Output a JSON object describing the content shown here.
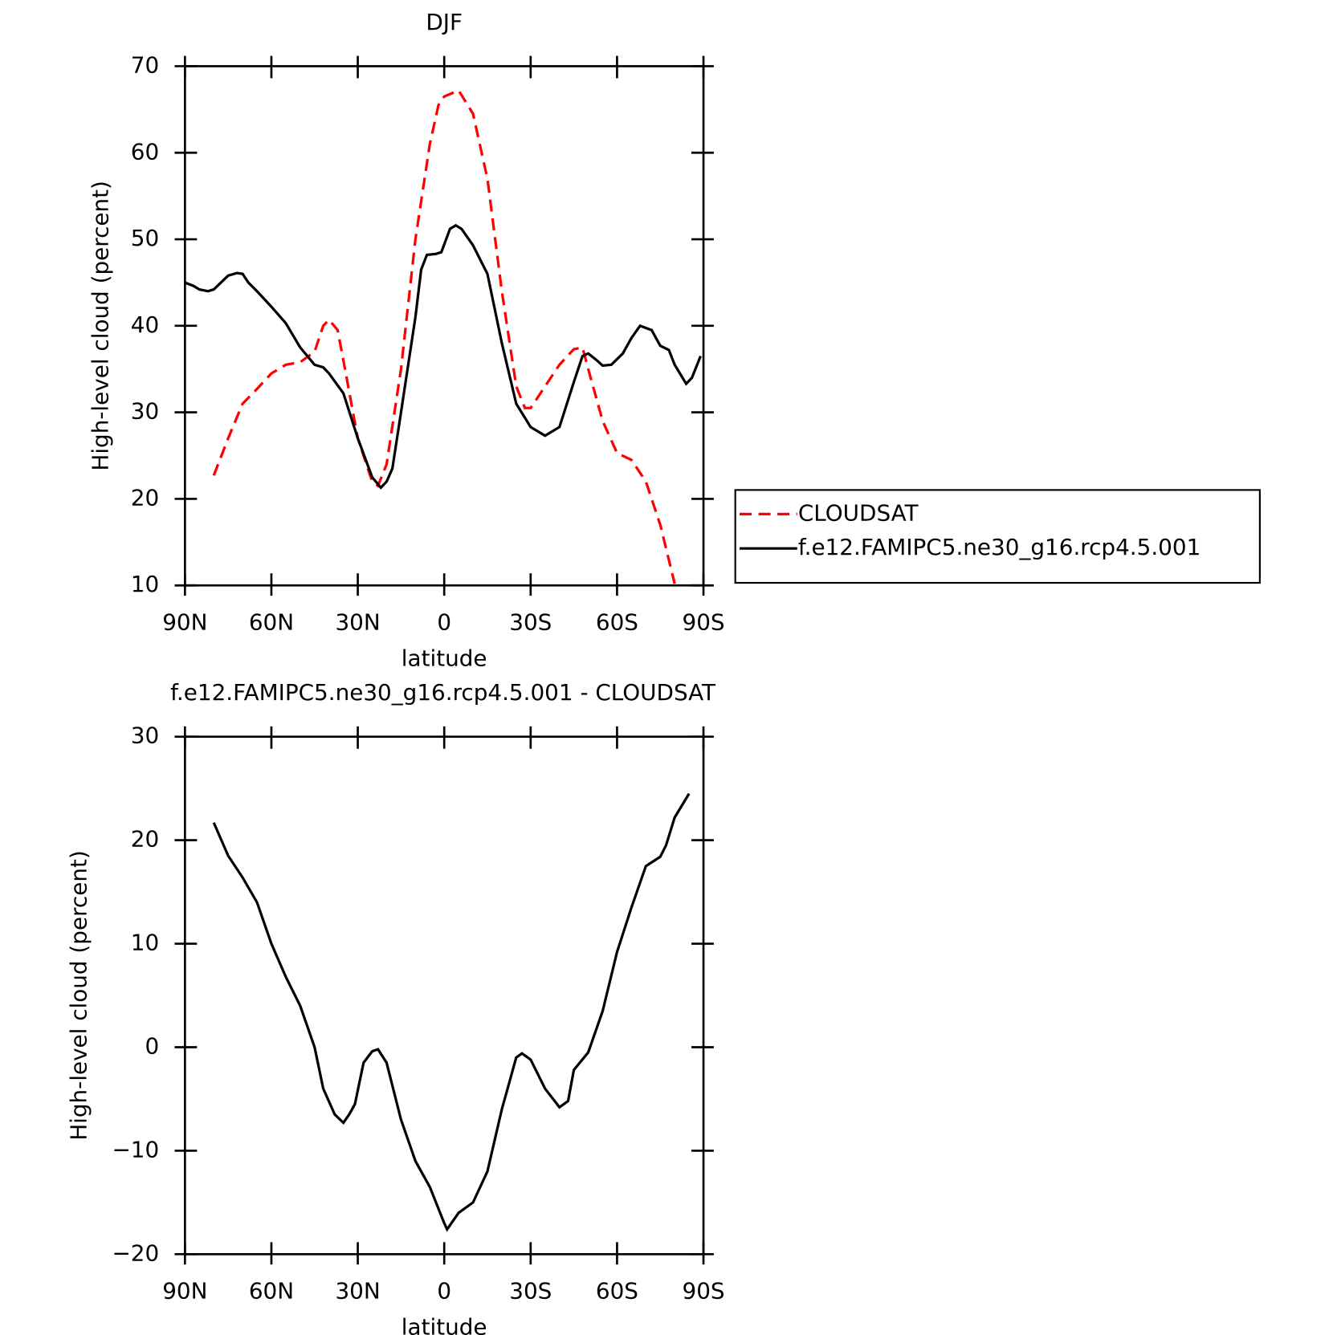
{
  "chart_data": [
    {
      "type": "line",
      "title": "DJF",
      "xlabel": "latitude",
      "ylabel": "High-level cloud (percent)",
      "xlim": [
        90,
        -90
      ],
      "ylim": [
        10,
        70
      ],
      "xticks": [
        {
          "value": 90,
          "label": "90N"
        },
        {
          "value": 60,
          "label": "60N"
        },
        {
          "value": 30,
          "label": "30N"
        },
        0,
        {
          "value": -30,
          "label": "30S"
        },
        {
          "value": -60,
          "label": "60S"
        },
        {
          "value": -90,
          "label": "90S"
        }
      ],
      "yticks": [
        10,
        20,
        30,
        40,
        50,
        60,
        70
      ],
      "legend": "right",
      "series": [
        {
          "name": "CLOUDSAT",
          "color": "#ff0000",
          "dash": "dashed",
          "x": [
            80,
            75,
            70,
            65,
            60,
            55,
            50,
            45,
            42,
            40,
            37,
            35,
            30,
            25,
            23,
            20,
            15,
            10,
            5,
            2,
            0,
            -5,
            -10,
            -15,
            -20,
            -25,
            -28,
            -30,
            -35,
            -40,
            -45,
            -48,
            -50,
            -55,
            -60,
            -65,
            -70,
            -75,
            -80
          ],
          "values": [
            22.7,
            27,
            31,
            32.7,
            34.5,
            35.5,
            35.8,
            37,
            40,
            40.7,
            39.5,
            36,
            27,
            22,
            21.5,
            24,
            35,
            50,
            61,
            65.5,
            66.5,
            67.2,
            64.5,
            57,
            44,
            33,
            30.5,
            30.5,
            33,
            35.5,
            37.3,
            37.5,
            35,
            29,
            25.3,
            24.5,
            22,
            17,
            10.2
          ]
        },
        {
          "name": "f.e12.FAMIPC5.ne30_g16.rcp4.5.001",
          "color": "#000000",
          "dash": "solid",
          "x": [
            90,
            87,
            85,
            82,
            80,
            75,
            72,
            70,
            68,
            65,
            60,
            55,
            50,
            45,
            42,
            40,
            35,
            30,
            25,
            22,
            20,
            18,
            15,
            10,
            8,
            6,
            3,
            1,
            -2,
            -4,
            -6,
            -10,
            -15,
            -20,
            -25,
            -30,
            -35,
            -40,
            -45,
            -48,
            -50,
            -53,
            -55,
            -58,
            -62,
            -65,
            -68,
            -72,
            -75,
            -78,
            -80,
            -84,
            -86,
            -89
          ],
          "values": [
            45,
            44.6,
            44.2,
            44,
            44.2,
            45.8,
            46.1,
            46,
            45,
            44,
            42.2,
            40.3,
            37.5,
            35.5,
            35.2,
            34.5,
            32.2,
            27,
            22.5,
            21.3,
            22,
            23.5,
            30,
            41,
            46.5,
            48.2,
            48.3,
            48.5,
            51.2,
            51.6,
            51.2,
            49.3,
            46,
            38,
            31,
            28.3,
            27.3,
            28.3,
            33.5,
            36.5,
            36.8,
            36,
            35.4,
            35.5,
            36.8,
            38.6,
            40,
            39.5,
            37.7,
            37.2,
            35.5,
            33.3,
            34,
            36.5
          ]
        }
      ]
    },
    {
      "type": "line",
      "title": "f.e12.FAMIPC5.ne30_g16.rcp4.5.001 - CLOUDSAT",
      "xlabel": "latitude",
      "ylabel": "High-level cloud (percent)",
      "xlim": [
        90,
        -90
      ],
      "ylim": [
        -20,
        30
      ],
      "xticks": [
        {
          "value": 90,
          "label": "90N"
        },
        {
          "value": 60,
          "label": "60N"
        },
        {
          "value": 30,
          "label": "30N"
        },
        0,
        {
          "value": -30,
          "label": "30S"
        },
        {
          "value": -60,
          "label": "60S"
        },
        {
          "value": -90,
          "label": "90S"
        }
      ],
      "yticks": [
        {
          "value": -20,
          "label": "−20"
        },
        {
          "value": -10,
          "label": "−10"
        },
        0,
        10,
        20,
        30
      ],
      "series": [
        {
          "color": "#000000",
          "dash": "solid",
          "x": [
            80,
            75,
            70,
            65,
            60,
            55,
            50,
            45,
            42,
            38,
            35,
            33,
            31,
            28,
            25,
            23,
            20,
            15,
            10,
            5,
            0,
            -1,
            -5,
            -10,
            -15,
            -20,
            -25,
            -27,
            -30,
            -35,
            -40,
            -43,
            -45,
            -50,
            -55,
            -60,
            -65,
            -70,
            -75,
            -77,
            -80,
            -85
          ],
          "values": [
            21.7,
            18.5,
            16.4,
            14,
            10,
            6.8,
            4,
            0,
            -4,
            -6.5,
            -7.3,
            -6.5,
            -5.5,
            -1.5,
            -0.4,
            -0.2,
            -1.5,
            -7,
            -11,
            -13.5,
            -17,
            -17.6,
            -16,
            -15,
            -12,
            -6,
            -1,
            -0.6,
            -1.2,
            -4,
            -5.8,
            -5.2,
            -2.2,
            -0.5,
            3.5,
            9.2,
            13.5,
            17.5,
            18.4,
            19.5,
            22.2,
            24.5
          ]
        }
      ]
    }
  ]
}
